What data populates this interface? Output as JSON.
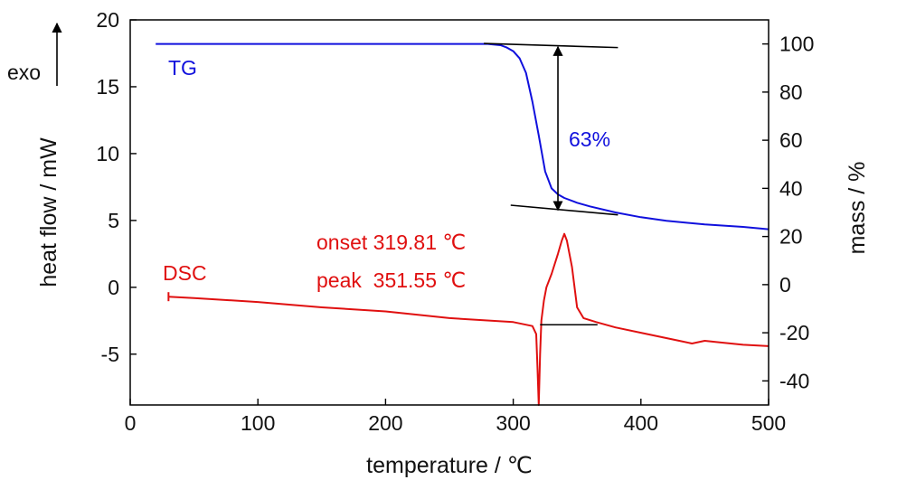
{
  "chart_data": {
    "type": "line",
    "xlabel": "temperature / ℃",
    "ylabel_left": "heat flow / mW",
    "ylabel_right": "mass / %",
    "exo_label": "exo",
    "xlim": [
      0,
      500
    ],
    "ylim_left": [
      -8.8,
      20
    ],
    "ylim_right": [
      -50,
      110
    ],
    "x_ticks": [
      0,
      100,
      200,
      300,
      400,
      500
    ],
    "y_left_ticks": [
      -5,
      0,
      5,
      10,
      15,
      20
    ],
    "y_right_ticks": [
      -40,
      -20,
      0,
      20,
      40,
      60,
      80,
      100
    ],
    "colors": {
      "TG": "#1010dd",
      "DSC": "#e01010",
      "construction": "#000000"
    },
    "series": [
      {
        "name": "TG",
        "axis": "right",
        "x": [
          20,
          100,
          200,
          250,
          280,
          290,
          295,
          300,
          305,
          310,
          315,
          320,
          325,
          330,
          335,
          340,
          350,
          360,
          380,
          400,
          420,
          450,
          480,
          500
        ],
        "y": [
          100,
          100,
          100,
          100,
          100,
          99.5,
          98.5,
          97,
          94,
          88,
          76,
          62,
          47,
          40,
          37.5,
          36,
          34,
          32.5,
          30,
          28,
          26.5,
          25,
          24,
          23
        ]
      },
      {
        "name": "DSC",
        "axis": "left",
        "x": [
          30,
          50,
          100,
          150,
          200,
          250,
          300,
          315,
          318,
          319,
          320,
          321,
          322,
          324,
          326,
          330,
          335,
          338,
          340,
          342,
          346,
          350,
          355,
          365,
          380,
          400,
          430,
          440,
          445,
          450,
          460,
          480,
          500
        ],
        "y": [
          -0.7,
          -0.8,
          -1.1,
          -1.5,
          -1.8,
          -2.3,
          -2.6,
          -2.9,
          -3.5,
          -6,
          -8.8,
          -5,
          -2.5,
          -1,
          0,
          1,
          2.5,
          3.5,
          4,
          3.5,
          1.5,
          -1.5,
          -2.3,
          -2.6,
          -3,
          -3.4,
          -4.0,
          -4.2,
          -4.1,
          -4.0,
          -4.1,
          -4.3,
          -4.4
        ]
      }
    ],
    "annotations": {
      "tg_label": "TG",
      "dsc_label": "DSC",
      "mass_loss": "63%",
      "onset": "onset 319.81 ℃",
      "peak": "peak  351.55 ℃"
    },
    "construction_lines": {
      "tg_upper_tangent": [
        [
          277,
          100.2
        ],
        [
          382,
          98.5
        ]
      ],
      "tg_lower_tangent": [
        [
          298,
          33
        ],
        [
          382,
          29
        ]
      ],
      "tg_arrow_x": 335,
      "tg_arrow_range": [
        98.8,
        31
      ],
      "dsc_baseline": [
        [
          321,
          -2.8
        ],
        [
          366,
          -2.8
        ]
      ]
    }
  }
}
